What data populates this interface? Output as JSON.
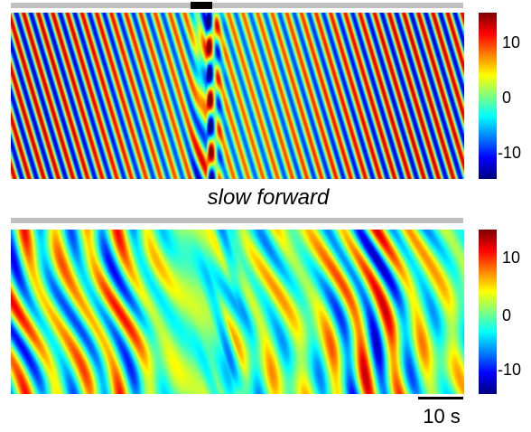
{
  "chart_data": [
    {
      "type": "heatmap",
      "title": "",
      "xlabel": "",
      "ylabel": "",
      "colormap": "jet",
      "value_range": [
        -14,
        14
      ],
      "colorbar_ticks": [
        {
          "value": 10,
          "label": "10"
        },
        {
          "value": 0,
          "label": "0"
        },
        {
          "value": -10,
          "label": "-10"
        }
      ],
      "pattern": "regular diagonal stripes, about 31 per window, with a brief high-amplitude event near 43% of the window",
      "top_bar_color": "#c0c0c0",
      "stimulus_marker_color": "#000000"
    },
    {
      "type": "heatmap",
      "title": "slow forward",
      "xlabel": "",
      "ylabel": "",
      "colormap": "jet",
      "value_range": [
        -14,
        14
      ],
      "colorbar_ticks": [
        {
          "value": 10,
          "label": "10"
        },
        {
          "value": 0,
          "label": "0"
        },
        {
          "value": -10,
          "label": "-10"
        }
      ],
      "pattern": "irregular lower-amplitude diagonal waves, about 14 per window",
      "top_bar_color": "#c0c0c0"
    }
  ],
  "scale_bar": {
    "label": "10 s",
    "color": "#000000"
  }
}
